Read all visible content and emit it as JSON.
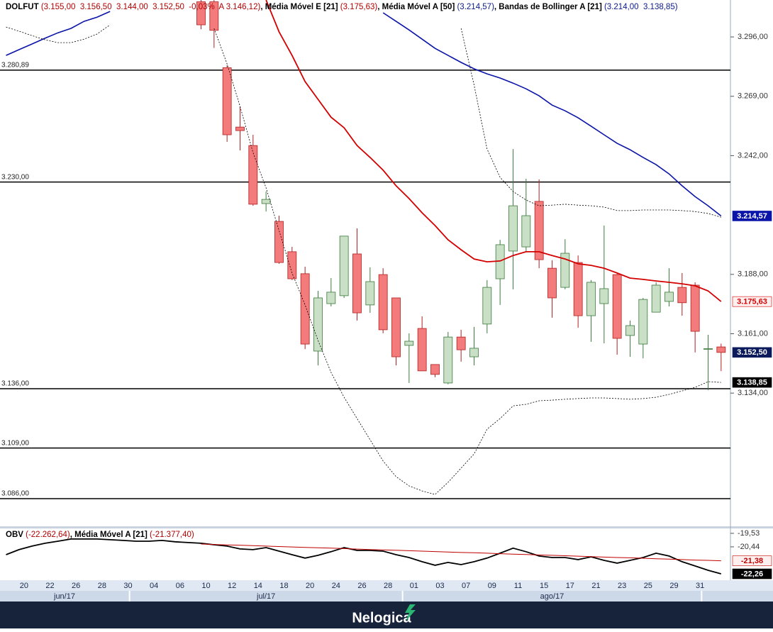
{
  "chart_data": [
    {
      "type": "candlestick",
      "header": [
        {
          "text": "DOLFUT",
          "color": "#000",
          "bold": true
        },
        {
          "text": " (3.155,00  3.156,50  3.144,00  3.152,50  -0,03%  A 3.146,12)",
          "color": "#b00000",
          "bold": false
        },
        {
          "text": ", Média Móvel E [21]",
          "color": "#000",
          "bold": true
        },
        {
          "text": " (3.175,63)",
          "color": "#b00000",
          "bold": false
        },
        {
          "text": ", Média Móvel A [50]",
          "color": "#000",
          "bold": true
        },
        {
          "text": " (3.214,57)",
          "color": "#0a1a8c",
          "bold": false
        },
        {
          "text": ", Bandas de Bollinger A [21]",
          "color": "#000",
          "bold": true
        },
        {
          "text": " (3.214,00  3.138,85)",
          "color": "#0a1a8c",
          "bold": false
        }
      ],
      "categories": [
        null,
        "20",
        null,
        "22",
        null,
        "26",
        null,
        "28",
        null,
        "30",
        null,
        "04",
        null,
        "06",
        null,
        "10",
        null,
        "12",
        null,
        "14",
        null,
        "18",
        null,
        "20",
        null,
        "24",
        null,
        "26",
        null,
        "28",
        null,
        "01",
        null,
        "03",
        null,
        "07",
        null,
        "09",
        null,
        "11",
        null,
        "15",
        null,
        "17",
        null,
        "21",
        null,
        "23",
        null,
        "25",
        null,
        "29",
        null,
        "31",
        null,
        null
      ],
      "x_groups": [
        {
          "label": "jun/17",
          "first": 0,
          "last": 9
        },
        {
          "label": "jul/17",
          "first": 10,
          "last": 30
        },
        {
          "label": "ago/17",
          "first": 31,
          "last": 53
        }
      ],
      "ylim": [
        3073.4,
        3312.8
      ],
      "yticks": [
        {
          "value": 3296,
          "label": "3.296,00"
        },
        {
          "value": 3269,
          "label": "3.269,00"
        },
        {
          "value": 3242,
          "label": "3.242,00"
        },
        {
          "value": 3188,
          "label": "3.188,00"
        },
        {
          "value": 3161,
          "label": "3.161,00"
        },
        {
          "value": 3134,
          "label": "3.134,00"
        }
      ],
      "hlines": [
        {
          "value": 3280.89,
          "label": "3.280,89"
        },
        {
          "value": 3230,
          "label": "3.230,00"
        },
        {
          "value": 3136,
          "label": "3.136,00"
        },
        {
          "value": 3109,
          "label": "3.109,00"
        },
        {
          "value": 3086,
          "label": "3.086,00"
        }
      ],
      "candles": {
        "up_color": "#c9dfc6",
        "up_border": "#3c7a3c",
        "down_color": "#f47b7b",
        "down_border": "#b02020",
        "open": [
          null,
          null,
          null,
          null,
          null,
          null,
          null,
          null,
          null,
          null,
          null,
          null,
          null,
          null,
          null,
          3312,
          3312,
          3282,
          3255,
          3246.6,
          3220.2,
          3212.1,
          3198.3,
          3188.3,
          3153.1,
          3174.7,
          3178.3,
          3197.3,
          3174.1,
          3187.9,
          3177.3,
          3155.7,
          3163.4,
          3147,
          3138.6,
          3159.5,
          3150.5,
          3165.4,
          3186,
          3198.6,
          3200.5,
          3221.2,
          3190.8,
          3182.1,
          3193.4,
          3169.2,
          3174.7,
          3187.9,
          3160.2,
          3156.3,
          3170.8,
          3175.7,
          3182.1,
          3183.1,
          3153.9,
          3155
        ],
        "high": [
          null,
          null,
          null,
          null,
          null,
          null,
          null,
          null,
          null,
          null,
          null,
          null,
          null,
          null,
          null,
          3312.8,
          3312.8,
          3283.1,
          3264.4,
          3251.5,
          3225.7,
          3214.7,
          3200.5,
          3191.5,
          3180.5,
          3186.3,
          3205.4,
          3208.9,
          3191.2,
          3190.8,
          3177.3,
          3161.2,
          3168.9,
          3147,
          3161.8,
          3162.8,
          3164.1,
          3185.4,
          3203.7,
          3245,
          3231.5,
          3231.2,
          3194.4,
          3204,
          3196.6,
          3185.4,
          3210.2,
          3188.6,
          3167,
          3177.3,
          3184.4,
          3190.8,
          3188.6,
          3184.4,
          3160.5,
          3156.5
        ],
        "low": [
          null,
          null,
          null,
          null,
          null,
          null,
          null,
          null,
          null,
          null,
          null,
          null,
          null,
          null,
          null,
          3299.5,
          3291,
          3248.3,
          3244.4,
          3219.2,
          3216.6,
          3192.8,
          3185.4,
          3154,
          3146.6,
          3173.4,
          3177.3,
          3167,
          3170.5,
          3161.2,
          3146.6,
          3138.6,
          3144.1,
          3141.2,
          3138,
          3148.3,
          3146.6,
          3161.2,
          3174.1,
          3181.2,
          3198.3,
          3190.8,
          3168.3,
          3181.2,
          3163.7,
          3157.3,
          3156.6,
          3151.5,
          3150.5,
          3149.8,
          3170.8,
          3173.4,
          3169.2,
          3152.5,
          3135.4,
          3144
        ],
        "close": [
          null,
          null,
          null,
          null,
          null,
          null,
          null,
          null,
          null,
          null,
          null,
          null,
          null,
          null,
          null,
          3301.5,
          3299,
          3251.5,
          3253.4,
          3219.9,
          3222.1,
          3193.4,
          3186,
          3156.3,
          3177.3,
          3179.9,
          3205.4,
          3170.5,
          3184.7,
          3162.8,
          3150.5,
          3157.6,
          3144.1,
          3142.5,
          3159.5,
          3153.7,
          3154.4,
          3182.1,
          3201.5,
          3219.2,
          3214.7,
          3194.7,
          3177.3,
          3197.6,
          3169.2,
          3184.4,
          3181.5,
          3158.9,
          3164.7,
          3176.6,
          3183.1,
          3179.9,
          3175.1,
          3162.1,
          3154.2,
          3152.5
        ],
        "badge": {
          "label": "3.152,50",
          "bg": "#0b1a5c",
          "fg": "#ffffff"
        }
      },
      "series": [
        {
          "color": "#d40000",
          "style": "solid",
          "width": 1.8,
          "values": [
            null,
            null,
            null,
            null,
            null,
            null,
            null,
            null,
            null,
            null,
            null,
            null,
            null,
            null,
            null,
            null,
            null,
            null,
            null,
            null,
            3312.8,
            3298.3,
            3287.6,
            3275.7,
            3267.6,
            3259.5,
            3254.7,
            3246.6,
            3241.2,
            3235.4,
            3228.3,
            3222.5,
            3216,
            3210.2,
            3203.7,
            3199.2,
            3195,
            3193.7,
            3194.1,
            3196.6,
            3198.3,
            3198.3,
            3196.6,
            3195,
            3192.8,
            3192.1,
            3190.8,
            3188.6,
            3186.3,
            3185.7,
            3185,
            3184.4,
            3183.7,
            3182.8,
            3180.5,
            3175.63
          ],
          "badge": {
            "label": "3.175,63",
            "bg": "#fff0f0",
            "fg": "#d40000"
          }
        },
        {
          "color": "#0a14a8",
          "style": "solid",
          "width": 1.6,
          "values": [
            3287.6,
            3290.2,
            3292.8,
            3295.4,
            3297.9,
            3299.9,
            3303.1,
            3305,
            3307.6,
            null,
            null,
            null,
            null,
            null,
            null,
            null,
            null,
            null,
            null,
            null,
            null,
            null,
            null,
            null,
            null,
            null,
            null,
            null,
            null,
            3307,
            3303.1,
            3299.2,
            3295,
            3290.8,
            3287.6,
            3284.4,
            3281.5,
            3279.2,
            3277.3,
            3275,
            3272.4,
            3269.2,
            3265,
            3262.4,
            3259.2,
            3255.4,
            3251.5,
            3247.6,
            3244.7,
            3241.2,
            3237.9,
            3233.7,
            3228.3,
            3223.4,
            3219.2,
            3214.57
          ],
          "badge": {
            "label": "3.214,57",
            "bg": "#0a14a8",
            "fg": "#ffffff"
          }
        },
        {
          "color": "#000000",
          "style": "dotted",
          "width": 0.8,
          "values": [
            3300.5,
            3298.6,
            3296.6,
            3294.7,
            3293.4,
            3293.4,
            3295,
            3297.3,
            3301.5,
            null,
            null,
            null,
            null,
            null,
            null,
            null,
            null,
            null,
            null,
            null,
            null,
            null,
            null,
            null,
            null,
            null,
            null,
            null,
            null,
            null,
            null,
            null,
            null,
            null,
            null,
            3299.9,
            3274.1,
            3245,
            3232.1,
            3225.7,
            3221.8,
            3219.2,
            3219.5,
            3219.9,
            3219.5,
            3219.2,
            3218.6,
            3217,
            3217,
            3217.3,
            3217.3,
            3217.3,
            3217,
            3216.6,
            3215.7,
            3214
          ]
        },
        {
          "color": "#000000",
          "style": "dotted",
          "width": 0.8,
          "values": [
            null,
            null,
            null,
            null,
            null,
            null,
            null,
            null,
            null,
            null,
            null,
            null,
            null,
            null,
            null,
            null,
            3299.9,
            3283.7,
            3264.4,
            3243.4,
            3227.3,
            3207.9,
            3188.6,
            3174.1,
            3157.9,
            3143.4,
            3132.1,
            3122.4,
            3112.8,
            3103.1,
            3096,
            3091.8,
            3089.5,
            3087.9,
            3093.4,
            3099.9,
            3106.3,
            3117.6,
            3122.4,
            3128.2,
            3128.9,
            3130.5,
            3130.8,
            3131.2,
            3131.5,
            3131.8,
            3131.8,
            3131.5,
            3131.2,
            3131.5,
            3132.1,
            3133.4,
            3135,
            3136.6,
            3139.2,
            3138.85
          ],
          "badge": {
            "label": "3.138,85",
            "bg": "#000000",
            "fg": "#ffffff"
          }
        }
      ]
    },
    {
      "type": "line",
      "header": [
        {
          "text": "OBV",
          "color": "#000",
          "bold": true
        },
        {
          "text": " (-22.262,64)",
          "color": "#b00000",
          "bold": false
        },
        {
          "text": ", Média Móvel A [21]",
          "color": "#000",
          "bold": true
        },
        {
          "text": " (-21.377,40)",
          "color": "#b00000",
          "bold": false
        }
      ],
      "ylim": [
        -22.69,
        -19.2
      ],
      "yticks": [
        {
          "value": -19.53,
          "label": "-19,53"
        },
        {
          "value": -20.44,
          "label": "-20,44"
        }
      ],
      "series": [
        {
          "color": "#000000",
          "style": "solid",
          "width": 1.8,
          "values": [
            -20.97,
            -20.63,
            -20.39,
            -20.2,
            -20.06,
            -19.91,
            -19.91,
            -19.91,
            -19.96,
            -20.01,
            -20.06,
            -20.06,
            -20.01,
            -20.1,
            -20.15,
            -20.2,
            -20.3,
            -20.39,
            -20.58,
            -20.63,
            -20.49,
            -20.73,
            -20.97,
            -21.2,
            -21.01,
            -20.77,
            -20.49,
            -20.68,
            -20.68,
            -20.73,
            -20.97,
            -21.16,
            -21.44,
            -21.68,
            -21.49,
            -21.64,
            -21.44,
            -21.2,
            -20.87,
            -20.53,
            -20.77,
            -21.06,
            -21.16,
            -21.16,
            -21.3,
            -21.11,
            -21.35,
            -21.54,
            -21.35,
            -21.16,
            -20.87,
            -21.06,
            -21.44,
            -21.73,
            -22.02,
            -22.26
          ],
          "badge": {
            "label": "-22,26",
            "bg": "#000000",
            "fg": "#ffffff"
          }
        },
        {
          "color": "#c00000",
          "style": "solid",
          "width": 1,
          "values": [
            null,
            null,
            null,
            null,
            null,
            null,
            null,
            null,
            null,
            null,
            null,
            null,
            null,
            null,
            null,
            -20.25,
            -20.28,
            -20.31,
            -20.33,
            -20.36,
            -20.39,
            -20.42,
            -20.45,
            -20.48,
            -20.5,
            -20.53,
            -20.56,
            -20.59,
            -20.62,
            -20.65,
            -20.67,
            -20.7,
            -20.73,
            -20.76,
            -20.79,
            -20.82,
            -20.84,
            -20.87,
            -20.9,
            -20.93,
            -20.96,
            -20.99,
            -21.01,
            -21.04,
            -21.07,
            -21.1,
            -21.13,
            -21.16,
            -21.18,
            -21.21,
            -21.24,
            -21.27,
            -21.3,
            -21.33,
            -21.35,
            -21.38
          ],
          "badge": {
            "label": "-21,38",
            "bg": "#fff0f0",
            "fg": "#c00000"
          }
        }
      ]
    }
  ],
  "footer": {
    "brand": "Nelogica"
  }
}
